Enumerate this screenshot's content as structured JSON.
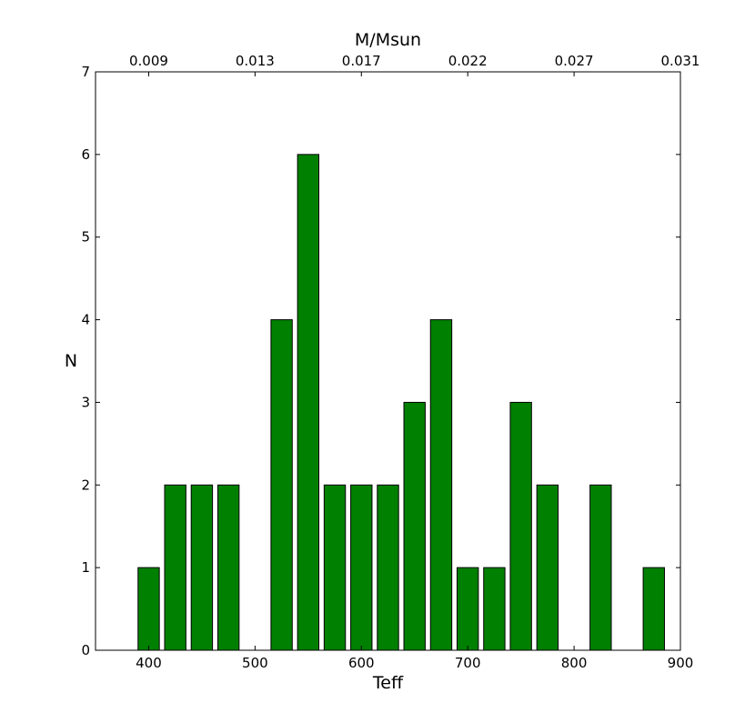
{
  "chart_data": {
    "type": "bar",
    "xlabel": "Teff",
    "ylabel": "N",
    "top_xlabel": "M/Msun",
    "xlim": [
      350,
      900
    ],
    "ylim": [
      0,
      7
    ],
    "x_ticks": [
      400,
      500,
      600,
      700,
      800,
      900
    ],
    "x_tick_labels": [
      "400",
      "500",
      "600",
      "700",
      "800",
      "900"
    ],
    "y_ticks": [
      0,
      1,
      2,
      3,
      4,
      5,
      6,
      7
    ],
    "y_tick_labels": [
      "0",
      "1",
      "2",
      "3",
      "4",
      "5",
      "6",
      "7"
    ],
    "top_tick_labels": [
      "0.009",
      "0.013",
      "0.017",
      "0.022",
      "0.027",
      "0.031"
    ],
    "bar_width": 20,
    "bar_color": "#008000",
    "bars": [
      {
        "x": 400,
        "value": 1
      },
      {
        "x": 425,
        "value": 2
      },
      {
        "x": 450,
        "value": 2
      },
      {
        "x": 475,
        "value": 2
      },
      {
        "x": 525,
        "value": 4
      },
      {
        "x": 550,
        "value": 6
      },
      {
        "x": 575,
        "value": 2
      },
      {
        "x": 600,
        "value": 2
      },
      {
        "x": 625,
        "value": 2
      },
      {
        "x": 650,
        "value": 3
      },
      {
        "x": 675,
        "value": 4
      },
      {
        "x": 700,
        "value": 1
      },
      {
        "x": 725,
        "value": 1
      },
      {
        "x": 750,
        "value": 3
      },
      {
        "x": 775,
        "value": 2
      },
      {
        "x": 825,
        "value": 2
      },
      {
        "x": 875,
        "value": 1
      }
    ]
  }
}
